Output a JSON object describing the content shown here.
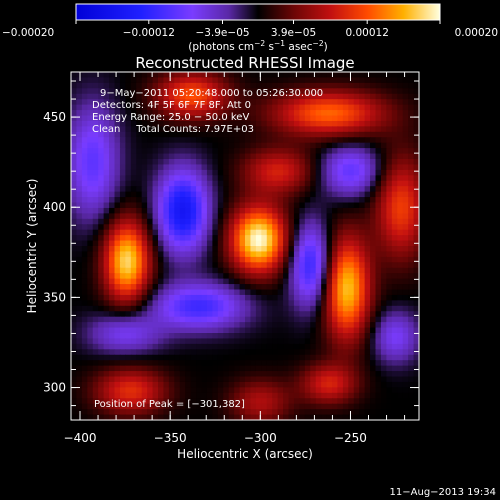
{
  "chart_data": {
    "type": "heatmap",
    "title": "Reconstructed RHESSI Image",
    "xlabel": "Heliocentric X (arcsec)",
    "ylabel": "Heliocentric Y (arcsec)",
    "xlim": [
      -405,
      -212
    ],
    "ylim": [
      282,
      475
    ],
    "x_ticks": [
      -400,
      -350,
      -300,
      -250
    ],
    "x_tick_labels": [
      "−400",
      "−350",
      "−300",
      "−250"
    ],
    "y_ticks": [
      300,
      350,
      400,
      450
    ],
    "y_tick_labels": [
      "300",
      "350",
      "400",
      "450"
    ],
    "colorbar": {
      "range": [
        -0.0002,
        0.0002
      ],
      "ticks": [
        -0.0002,
        -0.00012,
        -3.9e-05,
        3.9e-05,
        0.00012,
        0.0002
      ],
      "tick_labels": [
        "−0.00020",
        "−0.00012",
        "−3.9e−05",
        "3.9e−05",
        "0.00012",
        "0.00020"
      ],
      "unit_text": "(photons cm",
      "unit_sup1": "−2",
      "unit_mid": " s",
      "unit_sup2": "−1",
      "unit_mid2": " asec",
      "unit_sup3": "−2",
      "unit_end": ")"
    },
    "annotations": {
      "time_range": "9−May−2011 05:20:48.000 to 05:26:30.000",
      "detectors": "Detectors: 4F 5F 6F 7F 8F, Att 0",
      "energy": "Energy Range: 25.0 − 50.0 keV",
      "clean": "Clean     Total Counts: 7.97E+03",
      "peak": "Position of Peak = [−301,382]"
    },
    "peak": {
      "x": -301,
      "y": 382
    },
    "sources": [
      {
        "x": -301,
        "y": 382,
        "sx": 11,
        "sy": 13,
        "amp": 1.0
      },
      {
        "x": -374,
        "y": 370,
        "sx": 9,
        "sy": 16,
        "amp": 0.9
      },
      {
        "x": -252,
        "y": 355,
        "sx": 9,
        "sy": 20,
        "amp": 0.85
      },
      {
        "x": -338,
        "y": 462,
        "sx": 14,
        "sy": 9,
        "amp": 0.6
      },
      {
        "x": -262,
        "y": 452,
        "sx": 22,
        "sy": 9,
        "amp": 0.65
      },
      {
        "x": -222,
        "y": 400,
        "sx": 10,
        "sy": 20,
        "amp": 0.55
      },
      {
        "x": -290,
        "y": 420,
        "sx": 14,
        "sy": 9,
        "amp": 0.45
      },
      {
        "x": -372,
        "y": 298,
        "sx": 14,
        "sy": 9,
        "amp": 0.5
      },
      {
        "x": -300,
        "y": 292,
        "sx": 12,
        "sy": 9,
        "amp": 0.35
      },
      {
        "x": -262,
        "y": 302,
        "sx": 11,
        "sy": 8,
        "amp": 0.45
      },
      {
        "x": -343,
        "y": 398,
        "sx": 10,
        "sy": 16,
        "amp": -0.75
      },
      {
        "x": -272,
        "y": 368,
        "sx": 8,
        "sy": 16,
        "amp": -0.6
      },
      {
        "x": -334,
        "y": 345,
        "sx": 18,
        "sy": 9,
        "amp": -0.55
      },
      {
        "x": -250,
        "y": 420,
        "sx": 12,
        "sy": 10,
        "amp": -0.45
      },
      {
        "x": -393,
        "y": 425,
        "sx": 10,
        "sy": 22,
        "amp": -0.45
      },
      {
        "x": -225,
        "y": 328,
        "sx": 9,
        "sy": 10,
        "amp": -0.35
      },
      {
        "x": -375,
        "y": 330,
        "sx": 14,
        "sy": 8,
        "amp": -0.35
      }
    ],
    "colors": {
      "stops": [
        [
          0.0,
          "#0000d8"
        ],
        [
          0.18,
          "#2020ff"
        ],
        [
          0.32,
          "#7a3cff"
        ],
        [
          0.42,
          "#5a28a6"
        ],
        [
          0.5,
          "#000000"
        ],
        [
          0.6,
          "#6e0606"
        ],
        [
          0.7,
          "#c21010"
        ],
        [
          0.8,
          "#ff4a00"
        ],
        [
          0.9,
          "#ffb000"
        ],
        [
          1.0,
          "#ffffe0"
        ]
      ]
    }
  },
  "footer": {
    "timestamp": "11−Aug−2013 19:34"
  }
}
